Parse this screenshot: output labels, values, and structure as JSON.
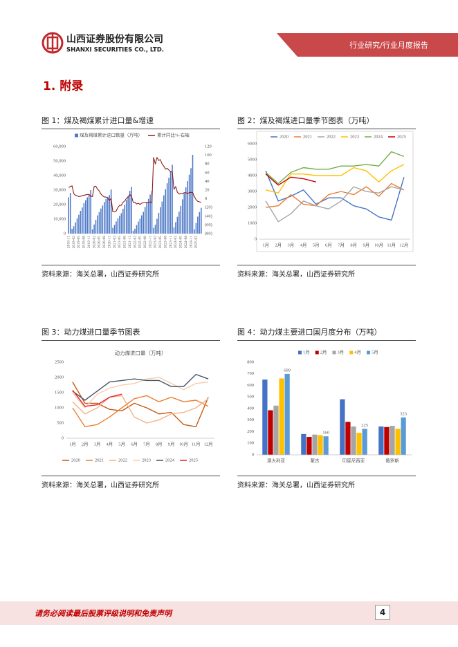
{
  "header": {
    "company_cn": "山西证券股份有限公司",
    "company_en": "SHANXI SECURITIES CO., LTD.",
    "report_type": "行业研究/行业月度报告"
  },
  "section_title": "1. 附录",
  "footer": {
    "disclaimer": "请务必阅读最后股票评级说明和免责声明",
    "page": 4
  },
  "chart_data": [
    {
      "type": "bar_line",
      "title": "图 1：煤及褐煤累计进口量&增速",
      "source": "资料来源：海关总署，山西证券研究所",
      "categories": [
        "2018-11",
        null,
        null,
        "2019-02",
        null,
        null,
        "2019-05",
        null,
        null,
        "2019-08",
        null,
        null,
        "2019-11",
        null,
        null,
        "2020-02",
        null,
        null,
        "2020-05",
        null,
        null,
        "2020-08",
        null,
        null,
        "2020-11",
        null,
        null,
        "2021-02",
        null,
        null,
        "2021-05",
        null,
        null,
        "2021-08",
        null,
        null,
        "2021-11",
        null,
        null,
        "2022-02",
        null,
        null,
        "2022-05",
        null,
        null,
        "2022-08",
        null,
        null,
        "2022-11",
        null,
        null,
        "2023-02",
        null,
        null,
        "2023-05",
        null,
        null,
        "2023-08",
        null,
        null,
        "2023-11",
        null,
        null,
        "2024-02",
        null,
        null,
        "2024-05",
        null,
        null,
        "2024-08",
        null,
        null,
        "2024-11",
        null,
        null,
        "2025-02",
        null,
        null,
        null
      ],
      "series": [
        {
          "name": "煤及褐煤累计进口数量（万吨）",
          "type": "bar",
          "color": "#4f7ac7",
          "values": [
            25000,
            28100,
            3300,
            5100,
            7800,
            10500,
            13000,
            15700,
            18000,
            21000,
            23000,
            25000,
            27000,
            30000,
            3000,
            6300,
            9500,
            12600,
            14800,
            17300,
            19400,
            21800,
            23900,
            25300,
            26600,
            30400,
            4000,
            6000,
            8400,
            10500,
            12300,
            14100,
            17100,
            20000,
            23300,
            26000,
            29500,
            32300,
            2000,
            3400,
            5900,
            8300,
            10300,
            12600,
            15000,
            18300,
            21400,
            23900,
            26900,
            29300,
            4000,
            6100,
            10200,
            14300,
            18200,
            22100,
            26400,
            30600,
            34700,
            38500,
            43000,
            47400,
            4300,
            7900,
            11600,
            15200,
            19100,
            23600,
            27700,
            32000,
            36200,
            40600,
            45100,
            54300,
            3000,
            7400,
            11700,
            14900,
            17800
          ]
        },
        {
          "name": "累计同比%-右轴",
          "type": "line",
          "axis": "y2",
          "color": "#8b1c1c",
          "values": [
            26,
            28,
            30,
            12,
            8,
            7,
            5,
            6,
            7,
            8,
            9,
            10,
            10,
            6,
            5,
            28,
            29,
            22,
            18,
            11,
            7,
            4,
            4,
            2,
            -4,
            1,
            -30,
            -30,
            -28,
            -20,
            -15,
            -15,
            -8,
            -5,
            1,
            4,
            10,
            6,
            -8,
            -8,
            -12,
            -10,
            -13,
            -10,
            -9,
            -8,
            -8,
            -9,
            -7,
            -9,
            95,
            80,
            95,
            88,
            90,
            80,
            75,
            68,
            70,
            66,
            62,
            62,
            22,
            28,
            15,
            11,
            12,
            12,
            14,
            14,
            12,
            14,
            15,
            14,
            5,
            -2,
            -6,
            -7,
            -8
          ]
        }
      ],
      "ylim": [
        0,
        60000
      ],
      "yticks": [
        0,
        {
          "value": 10000,
          "label": "10,000"
        },
        {
          "value": 20000,
          "label": "20,000"
        },
        {
          "value": 30000,
          "label": "30,000"
        },
        {
          "value": 40000,
          "label": "40,000"
        },
        {
          "value": 50000,
          "label": "50,000"
        },
        {
          "value": 60000,
          "label": "60,000"
        }
      ],
      "y2lim": [
        -80,
        120
      ],
      "y2ticks": [
        {
          "value": -80,
          "label": "(80)"
        },
        {
          "value": -60,
          "label": "(60)"
        },
        {
          "value": -40,
          "label": "(40)"
        },
        {
          "value": -20,
          "label": "(20)"
        },
        0,
        20,
        40,
        60,
        80,
        100,
        120
      ],
      "legend": "top"
    },
    {
      "type": "line",
      "title": "图 2：煤及褐煤进口量季节图表（万吨）",
      "source": "资料来源：海关总署，山西证券研究所",
      "categories": [
        "1月",
        "2月",
        "3月",
        "4月",
        "5月",
        "6月",
        "7月",
        "8月",
        "9月",
        "10月",
        "11月",
        "12月"
      ],
      "series": [
        {
          "name": "2020",
          "color": "#4472c4",
          "values": [
            4300,
            2400,
            2700,
            3100,
            2200,
            2600,
            2600,
            2100,
            1900,
            1400,
            1200,
            3900
          ]
        },
        {
          "name": "2021",
          "color": "#ed7d31",
          "values": [
            2000,
            2100,
            2800,
            2200,
            2100,
            2800,
            3000,
            2800,
            3300,
            2700,
            3500,
            3100
          ]
        },
        {
          "name": "2022",
          "color": "#a5a5a5",
          "values": [
            2400,
            1100,
            1600,
            2400,
            2100,
            1900,
            2400,
            3300,
            3000,
            2900,
            3300,
            3100
          ]
        },
        {
          "name": "2023",
          "color": "#ffc000",
          "values": [
            3100,
            2900,
            4100,
            4100,
            4000,
            4000,
            4000,
            4500,
            4300,
            3600,
            4300,
            4700
          ]
        },
        {
          "name": "2024",
          "color": "#70ad47",
          "values": [
            4200,
            3500,
            4200,
            4500,
            4400,
            4400,
            4600,
            4600,
            4700,
            4600,
            5500,
            5200
          ]
        },
        {
          "name": "2025",
          "color": "#c00000",
          "values": [
            4100,
            3400,
            3900,
            3800,
            3600,
            null,
            null,
            null,
            null,
            null,
            null,
            null
          ]
        }
      ],
      "ylim": [
        0,
        6000
      ],
      "yticks": [
        0,
        1000,
        2000,
        3000,
        4000,
        5000,
        6000
      ],
      "legend": "top"
    },
    {
      "type": "line",
      "title": "图 3：动力煤进口量季节图表",
      "inner_title": "动力煤进口量（万吨）",
      "source": "资料来源：海关总署，山西证券研究所",
      "categories": [
        "1月",
        "2月",
        "3月",
        "4月",
        "5月",
        "6月",
        "7月",
        "8月",
        "9月",
        "10月",
        "11月",
        "12月"
      ],
      "series": [
        {
          "name": "2020",
          "color": "#c65911",
          "values": [
            1850,
            1150,
            1150,
            950,
            900,
            1150,
            1000,
            800,
            850,
            450,
            380,
            1350
          ]
        },
        {
          "name": "2021",
          "color": "#ed7d31",
          "values": [
            1000,
            380,
            450,
            700,
            1000,
            1300,
            1400,
            1200,
            1350,
            1200,
            1250,
            1050
          ]
        },
        {
          "name": "2022",
          "color": "#f4b183",
          "values": [
            1200,
            800,
            1000,
            1350,
            1400,
            700,
            500,
            600,
            800,
            850,
            1000,
            1300
          ]
        },
        {
          "name": "2023",
          "color": "#f8cbad",
          "values": [
            1500,
            1000,
            1450,
            1650,
            1750,
            1800,
            1950,
            2000,
            1800,
            1600,
            1800,
            1850
          ]
        },
        {
          "name": "2024",
          "color": "#44546a",
          "values": [
            1550,
            1250,
            1550,
            1850,
            1900,
            1950,
            1900,
            1900,
            1700,
            1700,
            2100,
            1950
          ]
        },
        {
          "name": "2025",
          "color": "#e0242b",
          "values": [
            1580,
            1050,
            1100,
            1350,
            1450,
            null,
            null,
            null,
            null,
            null,
            null,
            null
          ]
        }
      ],
      "ylim": [
        0,
        2500
      ],
      "yticks": [
        0,
        500,
        1000,
        1500,
        2000,
        2500
      ],
      "legend": "bottom"
    },
    {
      "type": "bar",
      "title": "图 4：动力煤主要进口国月度分布（万吨）",
      "source": "资料来源：海关总署，山西证券研究所",
      "categories": [
        "澳大利亚",
        "蒙古",
        "印度尼西亚",
        "俄罗斯"
      ],
      "series": [
        {
          "name": "1月",
          "color": "#4472c4",
          "values": [
            650,
            180,
            480,
            245
          ]
        },
        {
          "name": "2月",
          "color": "#c00000",
          "values": [
            385,
            155,
            285,
            240
          ]
        },
        {
          "name": "3月",
          "color": "#a5a5a5",
          "values": [
            425,
            175,
            245,
            250
          ]
        },
        {
          "name": "4月",
          "color": "#ffc000",
          "values": [
            660,
            170,
            190,
            225
          ]
        },
        {
          "name": "5月",
          "color": "#5b9bd5",
          "values": [
            699,
            160,
            225,
            323
          ],
          "data_labels": true
        }
      ],
      "ylim": [
        0,
        800
      ],
      "yticks": [
        0,
        100,
        200,
        300,
        400,
        500,
        600,
        700,
        800
      ],
      "legend": "top"
    }
  ]
}
